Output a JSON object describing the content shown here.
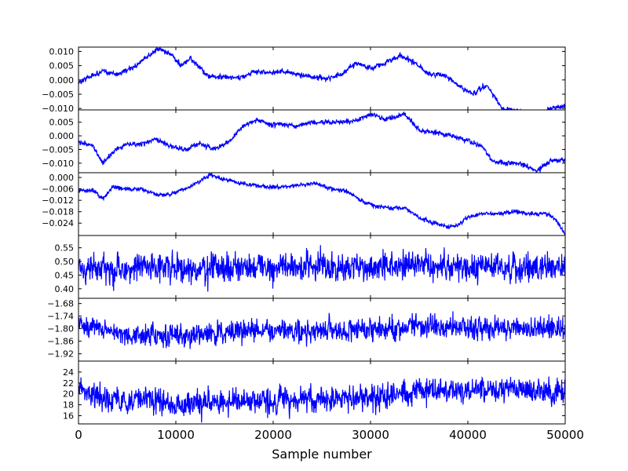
{
  "chart_data": {
    "type": "line",
    "xlabel": "Sample number",
    "xlim": [
      0,
      50000
    ],
    "xticks": [
      0,
      10000,
      20000,
      30000,
      40000,
      50000
    ],
    "xtick_labels": [
      "0",
      "10000",
      "20000",
      "30000",
      "40000",
      "50000"
    ],
    "series_color": "#0000ff",
    "panels": [
      {
        "name": "panel-1",
        "ylim": [
          -0.0105,
          0.0115
        ],
        "yticks": [
          0.01,
          0.005,
          0.0,
          -0.005,
          -0.01
        ],
        "ytick_labels": [
          "0.010",
          "0.005",
          "0.000",
          "−0.005",
          "−0.010"
        ],
        "noise": 0.0005,
        "anchors": [
          [
            0,
            -0.001
          ],
          [
            1000,
            0.001
          ],
          [
            2500,
            0.003
          ],
          [
            4000,
            0.002
          ],
          [
            5500,
            0.004
          ],
          [
            7000,
            0.008
          ],
          [
            8300,
            0.011
          ],
          [
            9500,
            0.009
          ],
          [
            10500,
            0.005
          ],
          [
            11500,
            0.0075
          ],
          [
            12500,
            0.004
          ],
          [
            13500,
            0.001
          ],
          [
            15000,
            0.001
          ],
          [
            16500,
            0.0005
          ],
          [
            18000,
            0.003
          ],
          [
            19500,
            0.0025
          ],
          [
            21000,
            0.003
          ],
          [
            22500,
            0.002
          ],
          [
            24000,
            0.001
          ],
          [
            25500,
            0.0005
          ],
          [
            27000,
            0.002
          ],
          [
            28500,
            0.006
          ],
          [
            30000,
            0.004
          ],
          [
            31500,
            0.006
          ],
          [
            33000,
            0.0085
          ],
          [
            34500,
            0.006
          ],
          [
            36000,
            0.002
          ],
          [
            37500,
            0.002
          ],
          [
            39000,
            -0.002
          ],
          [
            40500,
            -0.005
          ],
          [
            42000,
            -0.002
          ],
          [
            43500,
            -0.01
          ],
          [
            45500,
            -0.011
          ],
          [
            47000,
            -0.013
          ],
          [
            48500,
            -0.01
          ],
          [
            50000,
            -0.009
          ]
        ]
      },
      {
        "name": "panel-2",
        "ylim": [
          -0.0135,
          0.0095
        ],
        "yticks": [
          0.01,
          0.005,
          0.0,
          -0.005,
          -0.01
        ],
        "ytick_labels": [
          "0.010",
          "0.005",
          "0.000",
          "−0.005",
          "−0.010"
        ],
        "noise": 0.0005,
        "anchors": [
          [
            0,
            -0.002
          ],
          [
            1500,
            -0.004
          ],
          [
            2500,
            -0.01
          ],
          [
            3500,
            -0.006
          ],
          [
            5000,
            -0.003
          ],
          [
            6500,
            -0.003
          ],
          [
            8000,
            -0.001
          ],
          [
            9500,
            -0.004
          ],
          [
            11000,
            -0.005
          ],
          [
            12500,
            -0.003
          ],
          [
            14000,
            -0.005
          ],
          [
            15500,
            -0.002
          ],
          [
            17000,
            0.004
          ],
          [
            18500,
            0.006
          ],
          [
            19500,
            0.004
          ],
          [
            21000,
            0.0045
          ],
          [
            22500,
            0.0035
          ],
          [
            24000,
            0.005
          ],
          [
            26000,
            0.005
          ],
          [
            28000,
            0.005
          ],
          [
            30000,
            0.008
          ],
          [
            31500,
            0.006
          ],
          [
            33500,
            0.008
          ],
          [
            35000,
            0.002
          ],
          [
            37000,
            0.001
          ],
          [
            38500,
            0.0
          ],
          [
            40000,
            -0.002
          ],
          [
            41500,
            -0.004
          ],
          [
            42500,
            -0.009
          ],
          [
            44000,
            -0.01
          ],
          [
            45500,
            -0.01
          ],
          [
            47000,
            -0.013
          ],
          [
            48500,
            -0.009
          ],
          [
            50000,
            -0.009
          ]
        ]
      },
      {
        "name": "panel-3",
        "ylim": [
          -0.0305,
          0.0025
        ],
        "yticks": [
          0.0,
          -0.006,
          -0.012,
          -0.018,
          -0.024
        ],
        "ytick_labels": [
          "0.000",
          "−0.006",
          "−0.012",
          "−0.018",
          "−0.024"
        ],
        "noise": 0.0006,
        "anchors": [
          [
            0,
            -0.007
          ],
          [
            1500,
            -0.007
          ],
          [
            2500,
            -0.011
          ],
          [
            3500,
            -0.005
          ],
          [
            5000,
            -0.006
          ],
          [
            6500,
            -0.006
          ],
          [
            8000,
            -0.009
          ],
          [
            9500,
            -0.009
          ],
          [
            11000,
            -0.006
          ],
          [
            12500,
            -0.002
          ],
          [
            13500,
            0.0015
          ],
          [
            15000,
            -0.001
          ],
          [
            16500,
            -0.003
          ],
          [
            18000,
            -0.004
          ],
          [
            19500,
            -0.005
          ],
          [
            21000,
            -0.005
          ],
          [
            22500,
            -0.004
          ],
          [
            24500,
            -0.003
          ],
          [
            26000,
            -0.006
          ],
          [
            27500,
            -0.007
          ],
          [
            29000,
            -0.012
          ],
          [
            30500,
            -0.015
          ],
          [
            32000,
            -0.016
          ],
          [
            33500,
            -0.016
          ],
          [
            35000,
            -0.021
          ],
          [
            36500,
            -0.024
          ],
          [
            38000,
            -0.026
          ],
          [
            39000,
            -0.025
          ],
          [
            40000,
            -0.021
          ],
          [
            41500,
            -0.019
          ],
          [
            43000,
            -0.019
          ],
          [
            45000,
            -0.018
          ],
          [
            46500,
            -0.019
          ],
          [
            48000,
            -0.019
          ],
          [
            49000,
            -0.022
          ],
          [
            50000,
            -0.03
          ]
        ]
      },
      {
        "name": "panel-4",
        "ylim": [
          0.365,
          0.595
        ],
        "yticks": [
          0.55,
          0.5,
          0.45,
          0.4
        ],
        "ytick_labels": [
          "0.55",
          "0.50",
          "0.45",
          "0.40"
        ],
        "noise": 0.03,
        "anchors": [
          [
            0,
            0.475
          ],
          [
            10000,
            0.475
          ],
          [
            20000,
            0.48
          ],
          [
            30000,
            0.48
          ],
          [
            40000,
            0.48
          ],
          [
            50000,
            0.48
          ]
        ]
      },
      {
        "name": "panel-5",
        "ylim": [
          -1.955,
          -1.655
        ],
        "yticks": [
          -1.68,
          -1.74,
          -1.8,
          -1.86,
          -1.92
        ],
        "ytick_labels": [
          "−1.68",
          "−1.74",
          "−1.80",
          "−1.86",
          "−1.92"
        ],
        "noise": 0.03,
        "anchors": [
          [
            0,
            -1.78
          ],
          [
            1500,
            -1.8
          ],
          [
            5000,
            -1.83
          ],
          [
            10000,
            -1.83
          ],
          [
            15000,
            -1.82
          ],
          [
            20000,
            -1.81
          ],
          [
            25000,
            -1.81
          ],
          [
            30000,
            -1.8
          ],
          [
            35000,
            -1.79
          ],
          [
            40000,
            -1.8
          ],
          [
            45000,
            -1.79
          ],
          [
            50000,
            -1.8
          ]
        ]
      },
      {
        "name": "panel-6",
        "ylim": [
          14.5,
          26.0
        ],
        "yticks": [
          24,
          22,
          20,
          18,
          16
        ],
        "ytick_labels": [
          "24",
          "22",
          "20",
          "18",
          "16"
        ],
        "noise": 1.3,
        "anchors": [
          [
            0,
            21
          ],
          [
            2500,
            19
          ],
          [
            5000,
            18.5
          ],
          [
            7500,
            19
          ],
          [
            10000,
            18
          ],
          [
            15000,
            18.5
          ],
          [
            20000,
            19
          ],
          [
            25000,
            19
          ],
          [
            30000,
            19.5
          ],
          [
            35000,
            20.5
          ],
          [
            40000,
            20.5
          ],
          [
            45000,
            21
          ],
          [
            50000,
            20
          ]
        ]
      }
    ]
  }
}
